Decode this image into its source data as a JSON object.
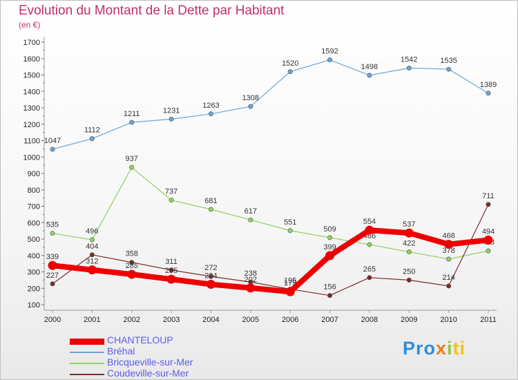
{
  "title": "Evolution du Montant de la Dette par Habitant",
  "subtitle": "(en €)",
  "logo": [
    "Pro",
    "x",
    "i",
    "ti"
  ],
  "chart_data": {
    "type": "line",
    "title": "Evolution du Montant de la Dette par Habitant",
    "subtitle": "(en €)",
    "x": [
      "2000",
      "2001",
      "2002",
      "2003",
      "2004",
      "2005",
      "2006",
      "2007",
      "2008",
      "2009",
      "2010",
      "2011"
    ],
    "y_ticks": [
      100,
      200,
      300,
      400,
      500,
      600,
      700,
      800,
      900,
      1000,
      1100,
      1200,
      1300,
      1400,
      1500,
      1600,
      1700
    ],
    "ylim": [
      100,
      1700
    ],
    "grid": false,
    "legend_position": "bottom-left",
    "series": [
      {
        "name": "CHANTELOUP",
        "color": "#ee0000",
        "values": [
          339,
          312,
          285,
          255,
          224,
          202,
          179,
          399,
          554,
          537,
          468,
          494
        ]
      },
      {
        "name": "Bréhal",
        "color": "#6aa6d8",
        "values": [
          1047,
          1112,
          1211,
          1231,
          1263,
          1308,
          1520,
          1592,
          1498,
          1542,
          1535,
          1389
        ]
      },
      {
        "name": "Bricqueville-sur-Mer",
        "color": "#8dd35f",
        "values": [
          535,
          496,
          937,
          737,
          681,
          617,
          551,
          509,
          466,
          422,
          378,
          428
        ]
      },
      {
        "name": "Coudeville-sur-Mer",
        "color": "#7a2a2a",
        "values": [
          227,
          404,
          358,
          311,
          272,
          238,
          195,
          156,
          265,
          250,
          214,
          711
        ]
      }
    ]
  }
}
